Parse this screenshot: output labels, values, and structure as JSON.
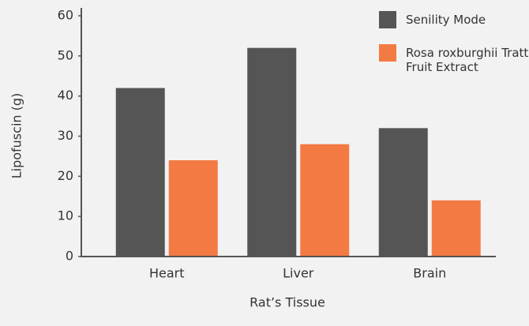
{
  "chart_data": {
    "type": "bar",
    "x_label": "Rat’s Tissue",
    "y_label": "Lipofuscin (g)",
    "categories": [
      "Heart",
      "Liver",
      "Brain"
    ],
    "series": [
      {
        "name": "Senility Mode",
        "color": "#555555",
        "values": [
          42,
          52,
          32
        ]
      },
      {
        "name": "Rosa roxburghii Tratt Fruit Extract",
        "color": "#f47a44",
        "values": [
          24,
          28,
          14
        ]
      }
    ],
    "ylim": [
      0,
      60
    ],
    "yticks": [
      0,
      10,
      20,
      30,
      40,
      50,
      60
    ],
    "legend": "upper right",
    "grid": false
  }
}
